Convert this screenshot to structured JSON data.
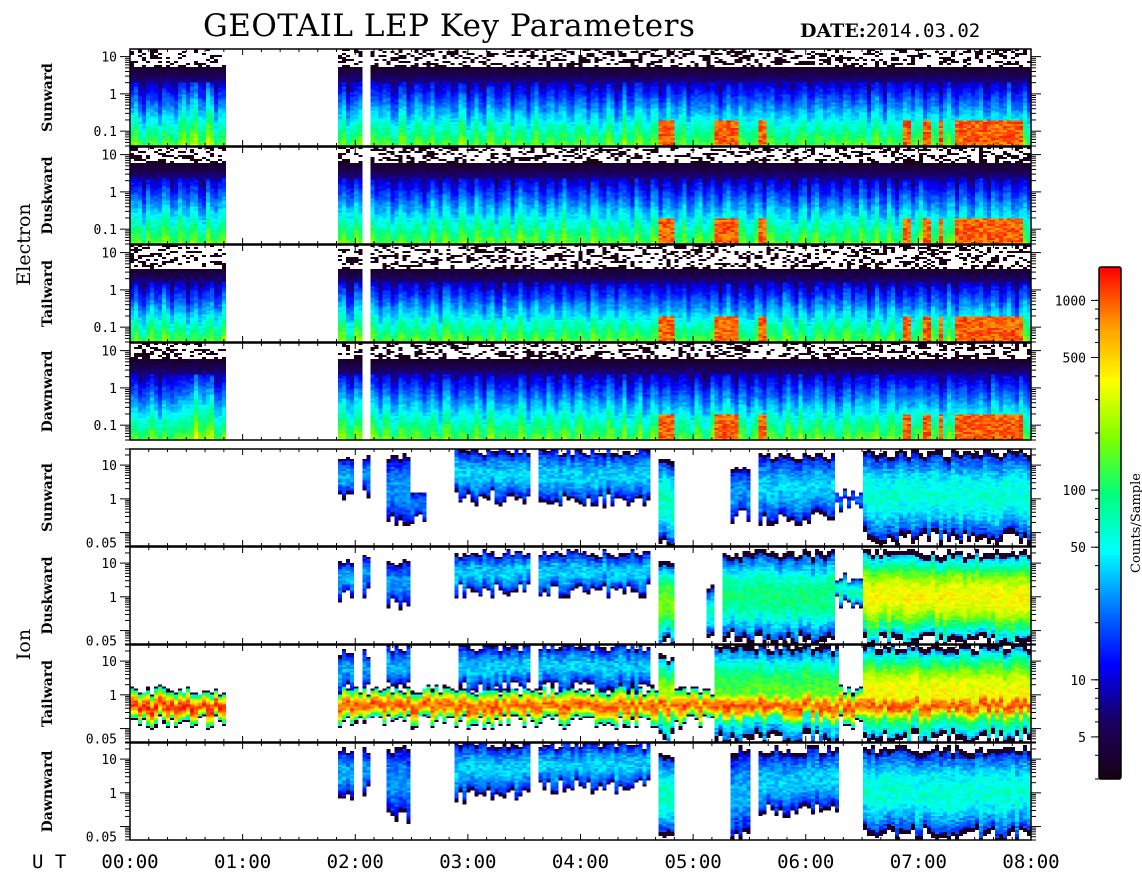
{
  "title": "GEOTAIL LEP Key Parameters",
  "date_label": "DATE:",
  "date_value": "2014.03.02",
  "ut_label": "U T",
  "colors": {
    "frame": "#000000",
    "background": "#ffffff"
  },
  "chart_data": {
    "type": "heatmap",
    "x_axis": {
      "ticks": [
        "00:00",
        "01:00",
        "02:00",
        "03:00",
        "04:00",
        "05:00",
        "06:00",
        "07:00",
        "08:00"
      ],
      "range_hours": [
        0,
        8
      ]
    },
    "colorbar": {
      "label": "Counts/Sample",
      "scale": "log",
      "range": [
        3,
        1500
      ],
      "ticks": [
        "5",
        "10",
        "50",
        "100",
        "500",
        "1000"
      ],
      "tick_values": [
        5,
        10,
        50,
        100,
        500,
        1000
      ],
      "colormap": [
        "#1a0014",
        "#1a0062",
        "#0000ff",
        "#0078ff",
        "#00ffff",
        "#00ff7a",
        "#80ff00",
        "#ffff00",
        "#ff9a00",
        "#ff0000"
      ]
    },
    "groups": [
      {
        "label": "Electron",
        "y_scale": "log",
        "y_range": [
          0.04,
          16
        ],
        "y_ticks": [
          "10",
          "1",
          "0.1"
        ],
        "y_tick_values": [
          10,
          1,
          0.1
        ],
        "panels": [
          {
            "label": "Sunward",
            "data_gaps_hours": [
              [
                0.84,
                1.86
              ],
              [
                2.08,
                2.15
              ]
            ]
          },
          {
            "label": "Duskward",
            "data_gaps_hours": [
              [
                0.84,
                1.86
              ],
              [
                2.08,
                2.15
              ]
            ]
          },
          {
            "label": "Tailward",
            "data_gaps_hours": [
              [
                0.84,
                1.86
              ],
              [
                2.08,
                2.15
              ]
            ]
          },
          {
            "label": "Dawnward",
            "data_gaps_hours": [
              [
                0.84,
                1.86
              ],
              [
                2.08,
                2.15
              ]
            ]
          }
        ]
      },
      {
        "label": "Ion",
        "y_scale": "log",
        "y_range": [
          0.04,
          30
        ],
        "y_ticks": [
          "10",
          "1",
          "0.05"
        ],
        "y_tick_values": [
          10,
          1,
          0.05
        ],
        "panels": [
          {
            "label": "Sunward"
          },
          {
            "label": "Duskward"
          },
          {
            "label": "Tailward"
          },
          {
            "label": "Dawnward"
          }
        ]
      }
    ]
  }
}
